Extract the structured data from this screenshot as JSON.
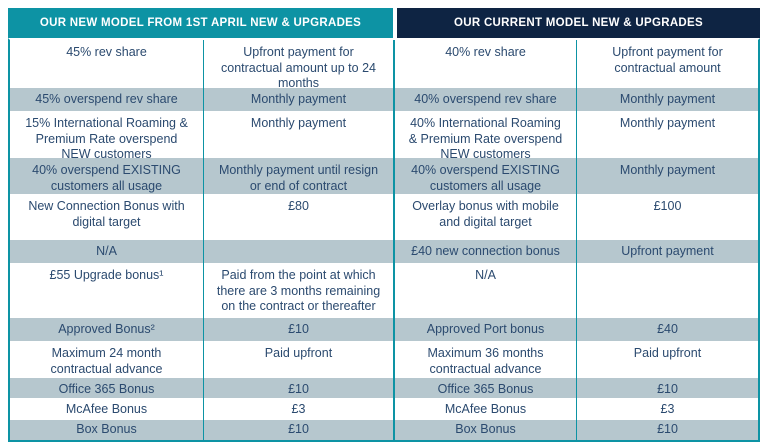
{
  "colors": {
    "teal": "#0D93A4",
    "navy": "#0E2443",
    "row_shade": "#B6C7CE",
    "row_white": "#FFFFFF",
    "text": "#2B4A6F",
    "header_text": "#FFFFFF"
  },
  "headers": [
    {
      "label": "OUR NEW MODEL FROM 1ST APRIL NEW & UPGRADES"
    },
    {
      "label": "OUR CURRENT MODEL NEW & UPGRADES"
    }
  ],
  "rows": [
    {
      "cells": [
        "45% rev share",
        "Upfront payment for contractual amount up to 24 months",
        "40% rev share",
        "Upfront payment for contractual amount"
      ]
    },
    {
      "cells": [
        "45% overspend rev share",
        "Monthly payment",
        "40% overspend rev share",
        "Monthly payment"
      ]
    },
    {
      "cells": [
        "15% International Roaming & Premium Rate overspend NEW customers",
        "Monthly payment",
        "40% International Roaming & Premium Rate overspend NEW customers",
        "Monthly payment"
      ]
    },
    {
      "cells": [
        "40% overspend EXISTING customers all usage",
        "Monthly payment until resign or end of contract",
        "40% overspend EXISTING customers all usage",
        "Monthly payment"
      ]
    },
    {
      "cells": [
        "New Connection Bonus with digital target",
        "£80",
        "Overlay bonus with mobile and digital target",
        "£100"
      ]
    },
    {
      "cells": [
        "N/A",
        "",
        "£40 new connection bonus",
        "Upfront payment"
      ]
    },
    {
      "cells": [
        "£55 Upgrade bonus¹",
        "Paid from the point at which there are 3 months remaining on the contract or thereafter",
        "N/A",
        ""
      ]
    },
    {
      "cells": [
        "Approved Bonus²",
        "£10",
        "Approved Port bonus",
        "£40"
      ]
    },
    {
      "cells": [
        "Maximum 24 month contractual advance",
        "Paid upfront",
        "Maximum 36 months contractual advance",
        "Paid upfront"
      ]
    },
    {
      "cells": [
        "Office 365 Bonus",
        "£10",
        "Office 365 Bonus",
        "£10"
      ]
    },
    {
      "cells": [
        "McAfee Bonus",
        "£3",
        "McAfee Bonus",
        "£3"
      ]
    },
    {
      "cells": [
        "Box Bonus",
        "£10",
        "Box Bonus",
        "£10"
      ]
    }
  ]
}
